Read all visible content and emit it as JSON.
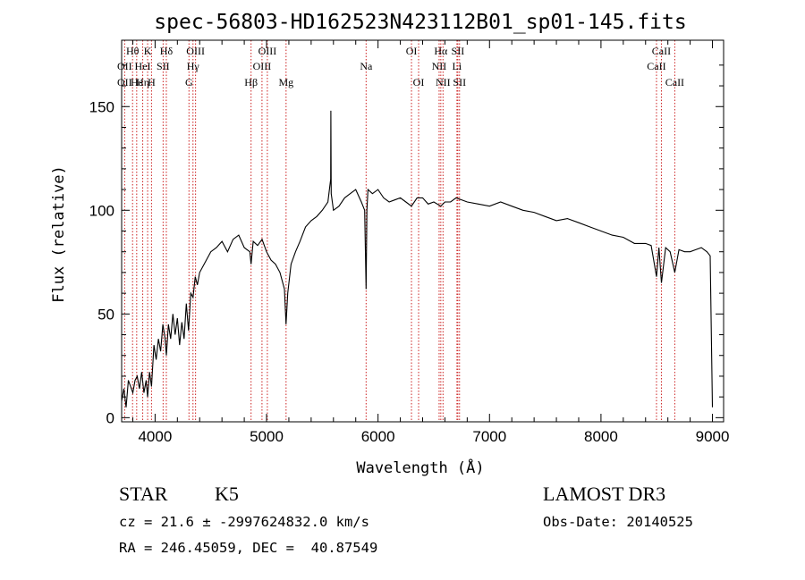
{
  "chart_data": {
    "type": "line",
    "title": "spec-56803-HD162523N423112B01_sp01-145.fits",
    "xlabel": "Wavelength (Å)",
    "ylabel": "Flux (relative)",
    "xlim": [
      3700,
      9100
    ],
    "ylim": [
      -2,
      182
    ],
    "x_ticks": [
      4000,
      5000,
      6000,
      7000,
      8000,
      9000
    ],
    "y_ticks": [
      0,
      50,
      100,
      150
    ],
    "grid": false,
    "series": [
      {
        "x": [
          3700,
          3720,
          3740,
          3760,
          3780,
          3800,
          3820,
          3840,
          3860,
          3880,
          3900,
          3920,
          3933,
          3950,
          3968,
          3990,
          4010,
          4030,
          4050,
          4070,
          4090,
          4101,
          4120,
          4140,
          4160,
          4180,
          4200,
          4220,
          4240,
          4260,
          4280,
          4300,
          4320,
          4340,
          4360,
          4380,
          4400,
          4450,
          4500,
          4550,
          4600,
          4650,
          4700,
          4750,
          4800,
          4850,
          4861,
          4880,
          4920,
          4960,
          5000,
          5040,
          5080,
          5120,
          5160,
          5175,
          5190,
          5220,
          5260,
          5300,
          5350,
          5400,
          5450,
          5500,
          5550,
          5575,
          5577,
          5580,
          5600,
          5650,
          5700,
          5750,
          5800,
          5850,
          5880,
          5893,
          5900,
          5910,
          5950,
          6000,
          6050,
          6100,
          6150,
          6200,
          6250,
          6300,
          6350,
          6400,
          6450,
          6500,
          6563,
          6600,
          6650,
          6700,
          6800,
          6900,
          7000,
          7100,
          7200,
          7300,
          7400,
          7500,
          7600,
          7700,
          7800,
          7900,
          8000,
          8100,
          8200,
          8300,
          8400,
          8450,
          8498,
          8520,
          8542,
          8580,
          8620,
          8662,
          8700,
          8750,
          8800,
          8850,
          8900,
          8950,
          8980,
          9000
        ],
        "y": [
          8,
          14,
          5,
          18,
          15,
          12,
          18,
          20,
          14,
          22,
          12,
          18,
          10,
          22,
          15,
          35,
          28,
          38,
          32,
          45,
          38,
          30,
          45,
          38,
          50,
          40,
          48,
          35,
          46,
          38,
          55,
          42,
          60,
          58,
          68,
          64,
          70,
          75,
          80,
          82,
          85,
          80,
          86,
          88,
          82,
          80,
          74,
          85,
          83,
          86,
          80,
          76,
          74,
          70,
          62,
          45,
          60,
          74,
          80,
          85,
          92,
          95,
          97,
          100,
          104,
          115,
          148,
          108,
          100,
          102,
          106,
          108,
          110,
          104,
          100,
          62,
          100,
          110,
          108,
          110,
          106,
          104,
          105,
          106,
          104,
          102,
          106,
          106,
          103,
          104,
          102,
          104,
          104,
          106,
          104,
          103,
          102,
          104,
          102,
          100,
          99,
          97,
          95,
          96,
          94,
          92,
          90,
          88,
          87,
          84,
          84,
          83,
          68,
          82,
          65,
          82,
          80,
          70,
          81,
          80,
          80,
          81,
          82,
          80,
          78,
          5
        ]
      }
    ],
    "line_ids": [
      {
        "label": "Hθ",
        "wave": 3798,
        "row": 0
      },
      {
        "label": "OII",
        "wave": 3727,
        "row": 1
      },
      {
        "label": "OII",
        "wave": 3727,
        "row": 2
      },
      {
        "label": "Hε",
        "wave": 3835,
        "row": 2
      },
      {
        "label": "Hη",
        "wave": 3889,
        "row": 2
      },
      {
        "label": "HeI",
        "wave": 3889,
        "row": 1
      },
      {
        "label": "K",
        "wave": 3933,
        "row": 0
      },
      {
        "label": "SII",
        "wave": 4072,
        "row": 1
      },
      {
        "label": "H",
        "wave": 3968,
        "row": 2
      },
      {
        "label": "Hδ",
        "wave": 4101,
        "row": 0
      },
      {
        "label": "OIII",
        "wave": 4363,
        "row": 0
      },
      {
        "label": "Hγ",
        "wave": 4340,
        "row": 1
      },
      {
        "label": "G",
        "wave": 4304,
        "row": 2
      },
      {
        "label": "Hβ",
        "wave": 4861,
        "row": 2
      },
      {
        "label": "OIII",
        "wave": 5007,
        "row": 0
      },
      {
        "label": "OIII",
        "wave": 4959,
        "row": 1
      },
      {
        "label": "Mg",
        "wave": 5175,
        "row": 2
      },
      {
        "label": "Na",
        "wave": 5893,
        "row": 1
      },
      {
        "label": "OI",
        "wave": 6300,
        "row": 0
      },
      {
        "label": "OI",
        "wave": 6364,
        "row": 2
      },
      {
        "label": "Hα",
        "wave": 6563,
        "row": 0
      },
      {
        "label": "NII",
        "wave": 6548,
        "row": 1
      },
      {
        "label": "NII",
        "wave": 6583,
        "row": 2
      },
      {
        "label": "SII",
        "wave": 6716,
        "row": 0
      },
      {
        "label": "Li",
        "wave": 6708,
        "row": 1
      },
      {
        "label": "SII",
        "wave": 6731,
        "row": 2
      },
      {
        "label": "CaII",
        "wave": 8542,
        "row": 0
      },
      {
        "label": "CaII",
        "wave": 8498,
        "row": 1
      },
      {
        "label": "CaII",
        "wave": 8662,
        "row": 2
      }
    ],
    "marker_lines": [
      3727,
      3798,
      3835,
      3889,
      3933,
      3968,
      4072,
      4101,
      4304,
      4340,
      4363,
      4861,
      4959,
      5007,
      5175,
      5893,
      6300,
      6364,
      6548,
      6563,
      6583,
      6708,
      6716,
      6731,
      8498,
      8542,
      8662
    ],
    "colors": {
      "spectrum": "#000000",
      "marker": "#cc2222",
      "axis": "#000000"
    }
  },
  "info": {
    "class_label": "STAR",
    "subclass": "K5",
    "survey": "LAMOST DR3",
    "cz_text": "cz = 21.6 ± -2997624832.0 km/s",
    "obs_date": "Obs-Date: 20140525",
    "coords": "RA = 246.45059, DEC =  40.87549"
  }
}
